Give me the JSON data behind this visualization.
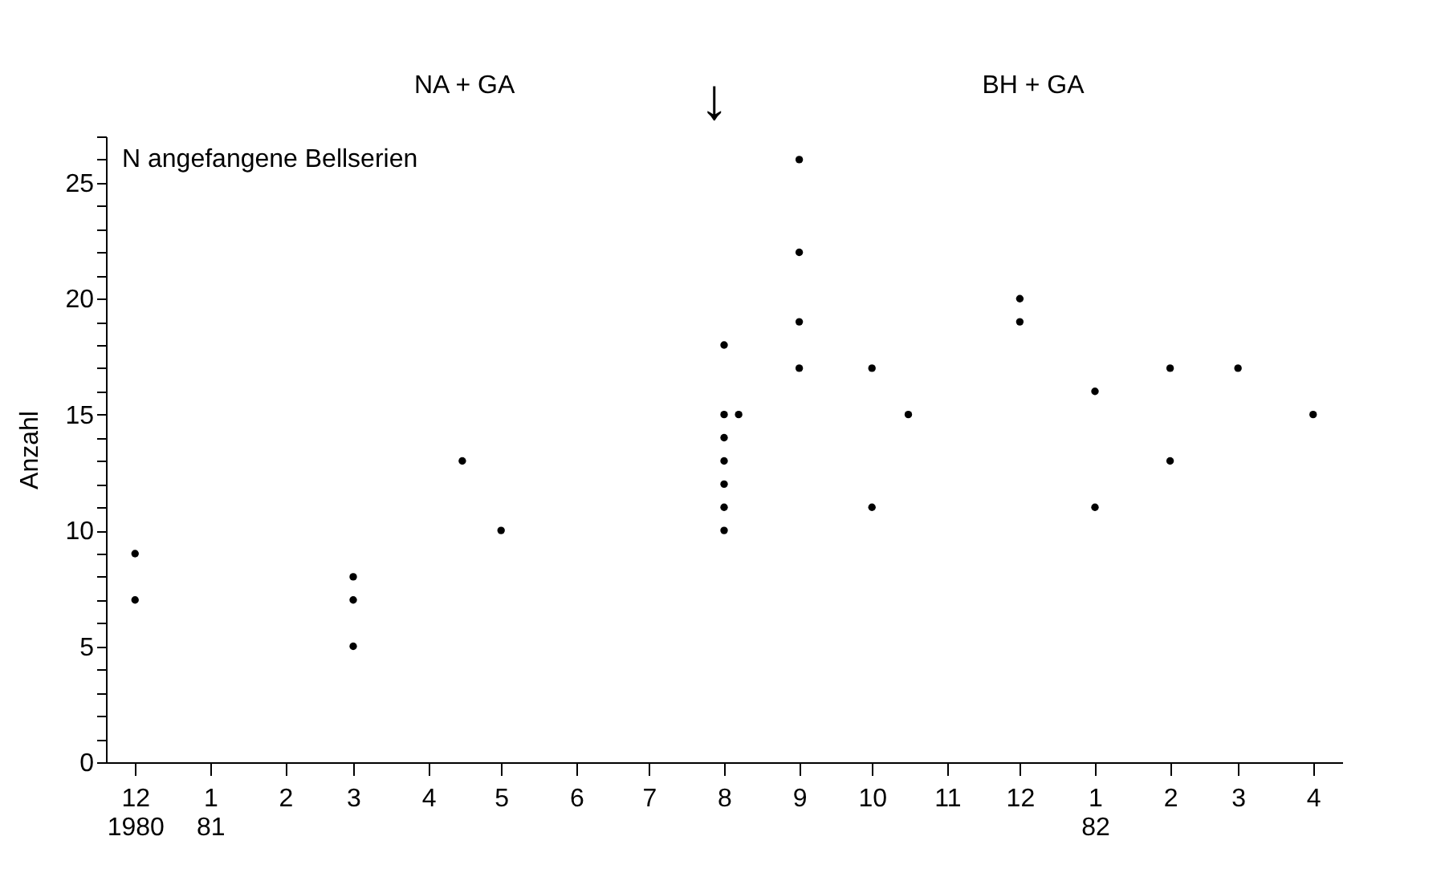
{
  "chart_data": {
    "type": "scatter",
    "ylabel": "Anzahl",
    "x": [
      "1980-12",
      "1980-12",
      "1981-03",
      "1981-03",
      "1981-03",
      "1981-04-15",
      "1981-05",
      "1981-08",
      "1981-08",
      "1981-08",
      "1981-08",
      "1981-08",
      "1981-08",
      "1981-08",
      "1981-08-07",
      "1981-09",
      "1981-09",
      "1981-09",
      "1981-09",
      "1981-10",
      "1981-10",
      "1981-10-16",
      "1981-12",
      "1981-12",
      "1982-01",
      "1982-01",
      "1982-02",
      "1982-02",
      "1982-03",
      "1982-04"
    ],
    "values": [
      9,
      7,
      8,
      7,
      5,
      13,
      10,
      18,
      15,
      14,
      13,
      12,
      11,
      10,
      15,
      26,
      22,
      19,
      17,
      17,
      11,
      15,
      20,
      19,
      16,
      11,
      17,
      13,
      17,
      15
    ],
    "color": "#000000",
    "marker": "circle",
    "grid": false,
    "xlim": [
      "1980-11-19",
      "1982-04-13"
    ],
    "ylim": [
      0,
      27
    ],
    "xticks": [
      {
        "value": "1980-12",
        "label": "12\n1980"
      },
      {
        "value": "1981-01",
        "label": "1\n81"
      },
      {
        "value": "1981-02",
        "label": "2"
      },
      {
        "value": "1981-03",
        "label": "3"
      },
      {
        "value": "1981-04",
        "label": "4"
      },
      {
        "value": "1981-05",
        "label": "5"
      },
      {
        "value": "1981-06",
        "label": "6"
      },
      {
        "value": "1981-07",
        "label": "7"
      },
      {
        "value": "1981-08",
        "label": "8"
      },
      {
        "value": "1981-09",
        "label": "9"
      },
      {
        "value": "1981-10",
        "label": "10"
      },
      {
        "value": "1981-11",
        "label": "11"
      },
      {
        "value": "1981-12",
        "label": "12"
      },
      {
        "value": "1982-01",
        "label": "1\n82"
      },
      {
        "value": "1982-02",
        "label": "2"
      },
      {
        "value": "1982-03",
        "label": "3"
      },
      {
        "value": "1982-04",
        "label": "4"
      }
    ],
    "yticks": [
      0,
      {
        "value": 1,
        "label": null
      },
      {
        "value": 2,
        "label": null
      },
      {
        "value": 3,
        "label": null
      },
      {
        "value": 4,
        "label": null
      },
      5,
      {
        "value": 6,
        "label": null
      },
      {
        "value": 7,
        "label": null
      },
      {
        "value": 8,
        "label": null
      },
      {
        "value": 9,
        "label": null
      },
      10,
      {
        "value": 11,
        "label": null
      },
      {
        "value": 12,
        "label": null
      },
      {
        "value": 13,
        "label": null
      },
      {
        "value": 14,
        "label": null
      },
      15,
      {
        "value": 16,
        "label": null
      },
      {
        "value": 17,
        "label": null
      },
      {
        "value": 18,
        "label": null
      },
      {
        "value": 19,
        "label": null
      },
      20,
      {
        "value": 21,
        "label": null
      },
      {
        "value": 22,
        "label": null
      },
      {
        "value": 23,
        "label": null
      },
      {
        "value": 24,
        "label": null
      },
      25,
      {
        "value": 26,
        "label": null
      },
      {
        "value": 27,
        "label": null
      }
    ],
    "annotations": [
      "N angefangene Bellserien",
      "NA + GA",
      "BH + GA",
      "↓"
    ]
  }
}
